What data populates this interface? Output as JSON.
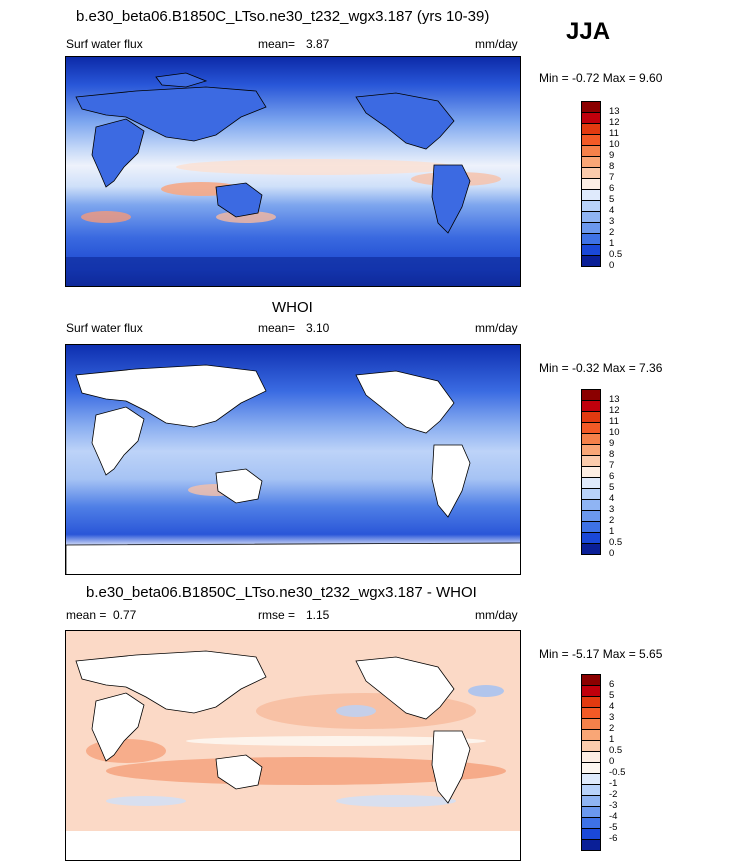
{
  "season": "JJA",
  "panels": [
    {
      "title": "b.e30_beta06.B1850C_LTso.ne30_t232_wgx3.187 (yrs 10-39)",
      "variable": "Surf water flux",
      "stat1_label": "mean=",
      "stat1_value": "3.87",
      "units": "mm/day",
      "minmax": "Min = -0.72 Max = 9.60",
      "colorbar_labels": [
        "13",
        "12",
        "11",
        "10",
        "9",
        "8",
        "7",
        "6",
        "5",
        "4",
        "3",
        "2",
        "1",
        "0.5",
        "0"
      ],
      "colorbar_colors": [
        "#8b0000",
        "#c0000c",
        "#e23a10",
        "#f35a26",
        "#f5814a",
        "#f9a676",
        "#fbcbac",
        "#fdeee4",
        "#dfeafc",
        "#b8d2fa",
        "#8fb4f3",
        "#6b98ee",
        "#3e72e6",
        "#1a48d8",
        "#0a1f97"
      ]
    },
    {
      "title": "WHOI",
      "variable": "Surf water flux",
      "stat1_label": "mean=",
      "stat1_value": "3.10",
      "units": "mm/day",
      "minmax": "Min = -0.32 Max = 7.36",
      "colorbar_labels": [
        "13",
        "12",
        "11",
        "10",
        "9",
        "8",
        "7",
        "6",
        "5",
        "4",
        "3",
        "2",
        "1",
        "0.5",
        "0"
      ],
      "colorbar_colors": [
        "#8b0000",
        "#c0000c",
        "#e23a10",
        "#f35a26",
        "#f5814a",
        "#f9a676",
        "#fbcbac",
        "#fdeee4",
        "#dfeafc",
        "#b8d2fa",
        "#8fb4f3",
        "#6b98ee",
        "#3e72e6",
        "#1a48d8",
        "#0a1f97"
      ]
    },
    {
      "title": "b.e30_beta06.B1850C_LTso.ne30_t232_wgx3.187 - WHOI",
      "stat1_label": "mean =",
      "stat1_value": "0.77",
      "stat2_label": "rmse =",
      "stat2_value": "1.15",
      "units": "mm/day",
      "minmax": "Min = -5.17 Max = 5.65",
      "colorbar_labels": [
        "6",
        "5",
        "4",
        "3",
        "2",
        "1",
        "0.5",
        "0",
        "-0.5",
        "-1",
        "-2",
        "-3",
        "-4",
        "-5",
        "-6"
      ],
      "colorbar_colors": [
        "#8b0000",
        "#c0000c",
        "#e23a10",
        "#f35a26",
        "#f5814a",
        "#f9a676",
        "#fbcbac",
        "#fdeee4",
        "#fdf6f0",
        "#dfeafc",
        "#b8d2fa",
        "#8fb4f3",
        "#6b98ee",
        "#3e72e6",
        "#1a48d8",
        "#0a1f97"
      ]
    }
  ]
}
